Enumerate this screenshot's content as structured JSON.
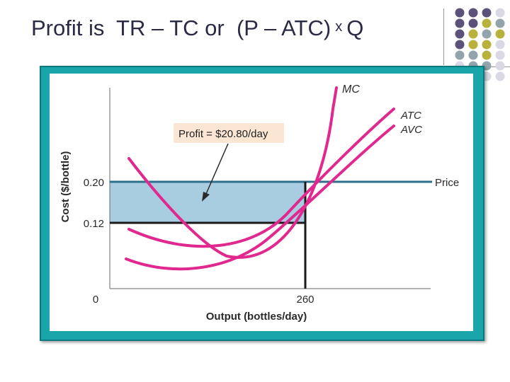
{
  "slide": {
    "title_part1": "Profit is  TR – TC or  (P – ATC)",
    "times": "x",
    "title_part2": "Q"
  },
  "colors": {
    "title": "#2a2a44",
    "frame": "#1aa5ab",
    "price_line": "#2e6f8e",
    "cost_curves": "#e0288e",
    "profit_area": "#a9cde0",
    "annotation_bg": "#fbe6d4",
    "dot_purple": "#5c5279",
    "dot_olive": "#b8b13c",
    "dot_gray": "#93a4ac",
    "dot_light": "#d9d9e6"
  },
  "chart_data": {
    "type": "line",
    "xlabel": "Output (bottles/day)",
    "ylabel": "Cost ($/bottle)",
    "x_ticks": [
      "0",
      "260"
    ],
    "y_ticks": [
      "0.20",
      "0.12"
    ],
    "price_label": "Price",
    "price": 0.2,
    "atc_at_q": 0.12,
    "quantity": 260,
    "annotation": "Profit = $20.80/day",
    "curve_labels": {
      "mc": "MC",
      "atc": "ATC",
      "avc": "AVC"
    }
  }
}
